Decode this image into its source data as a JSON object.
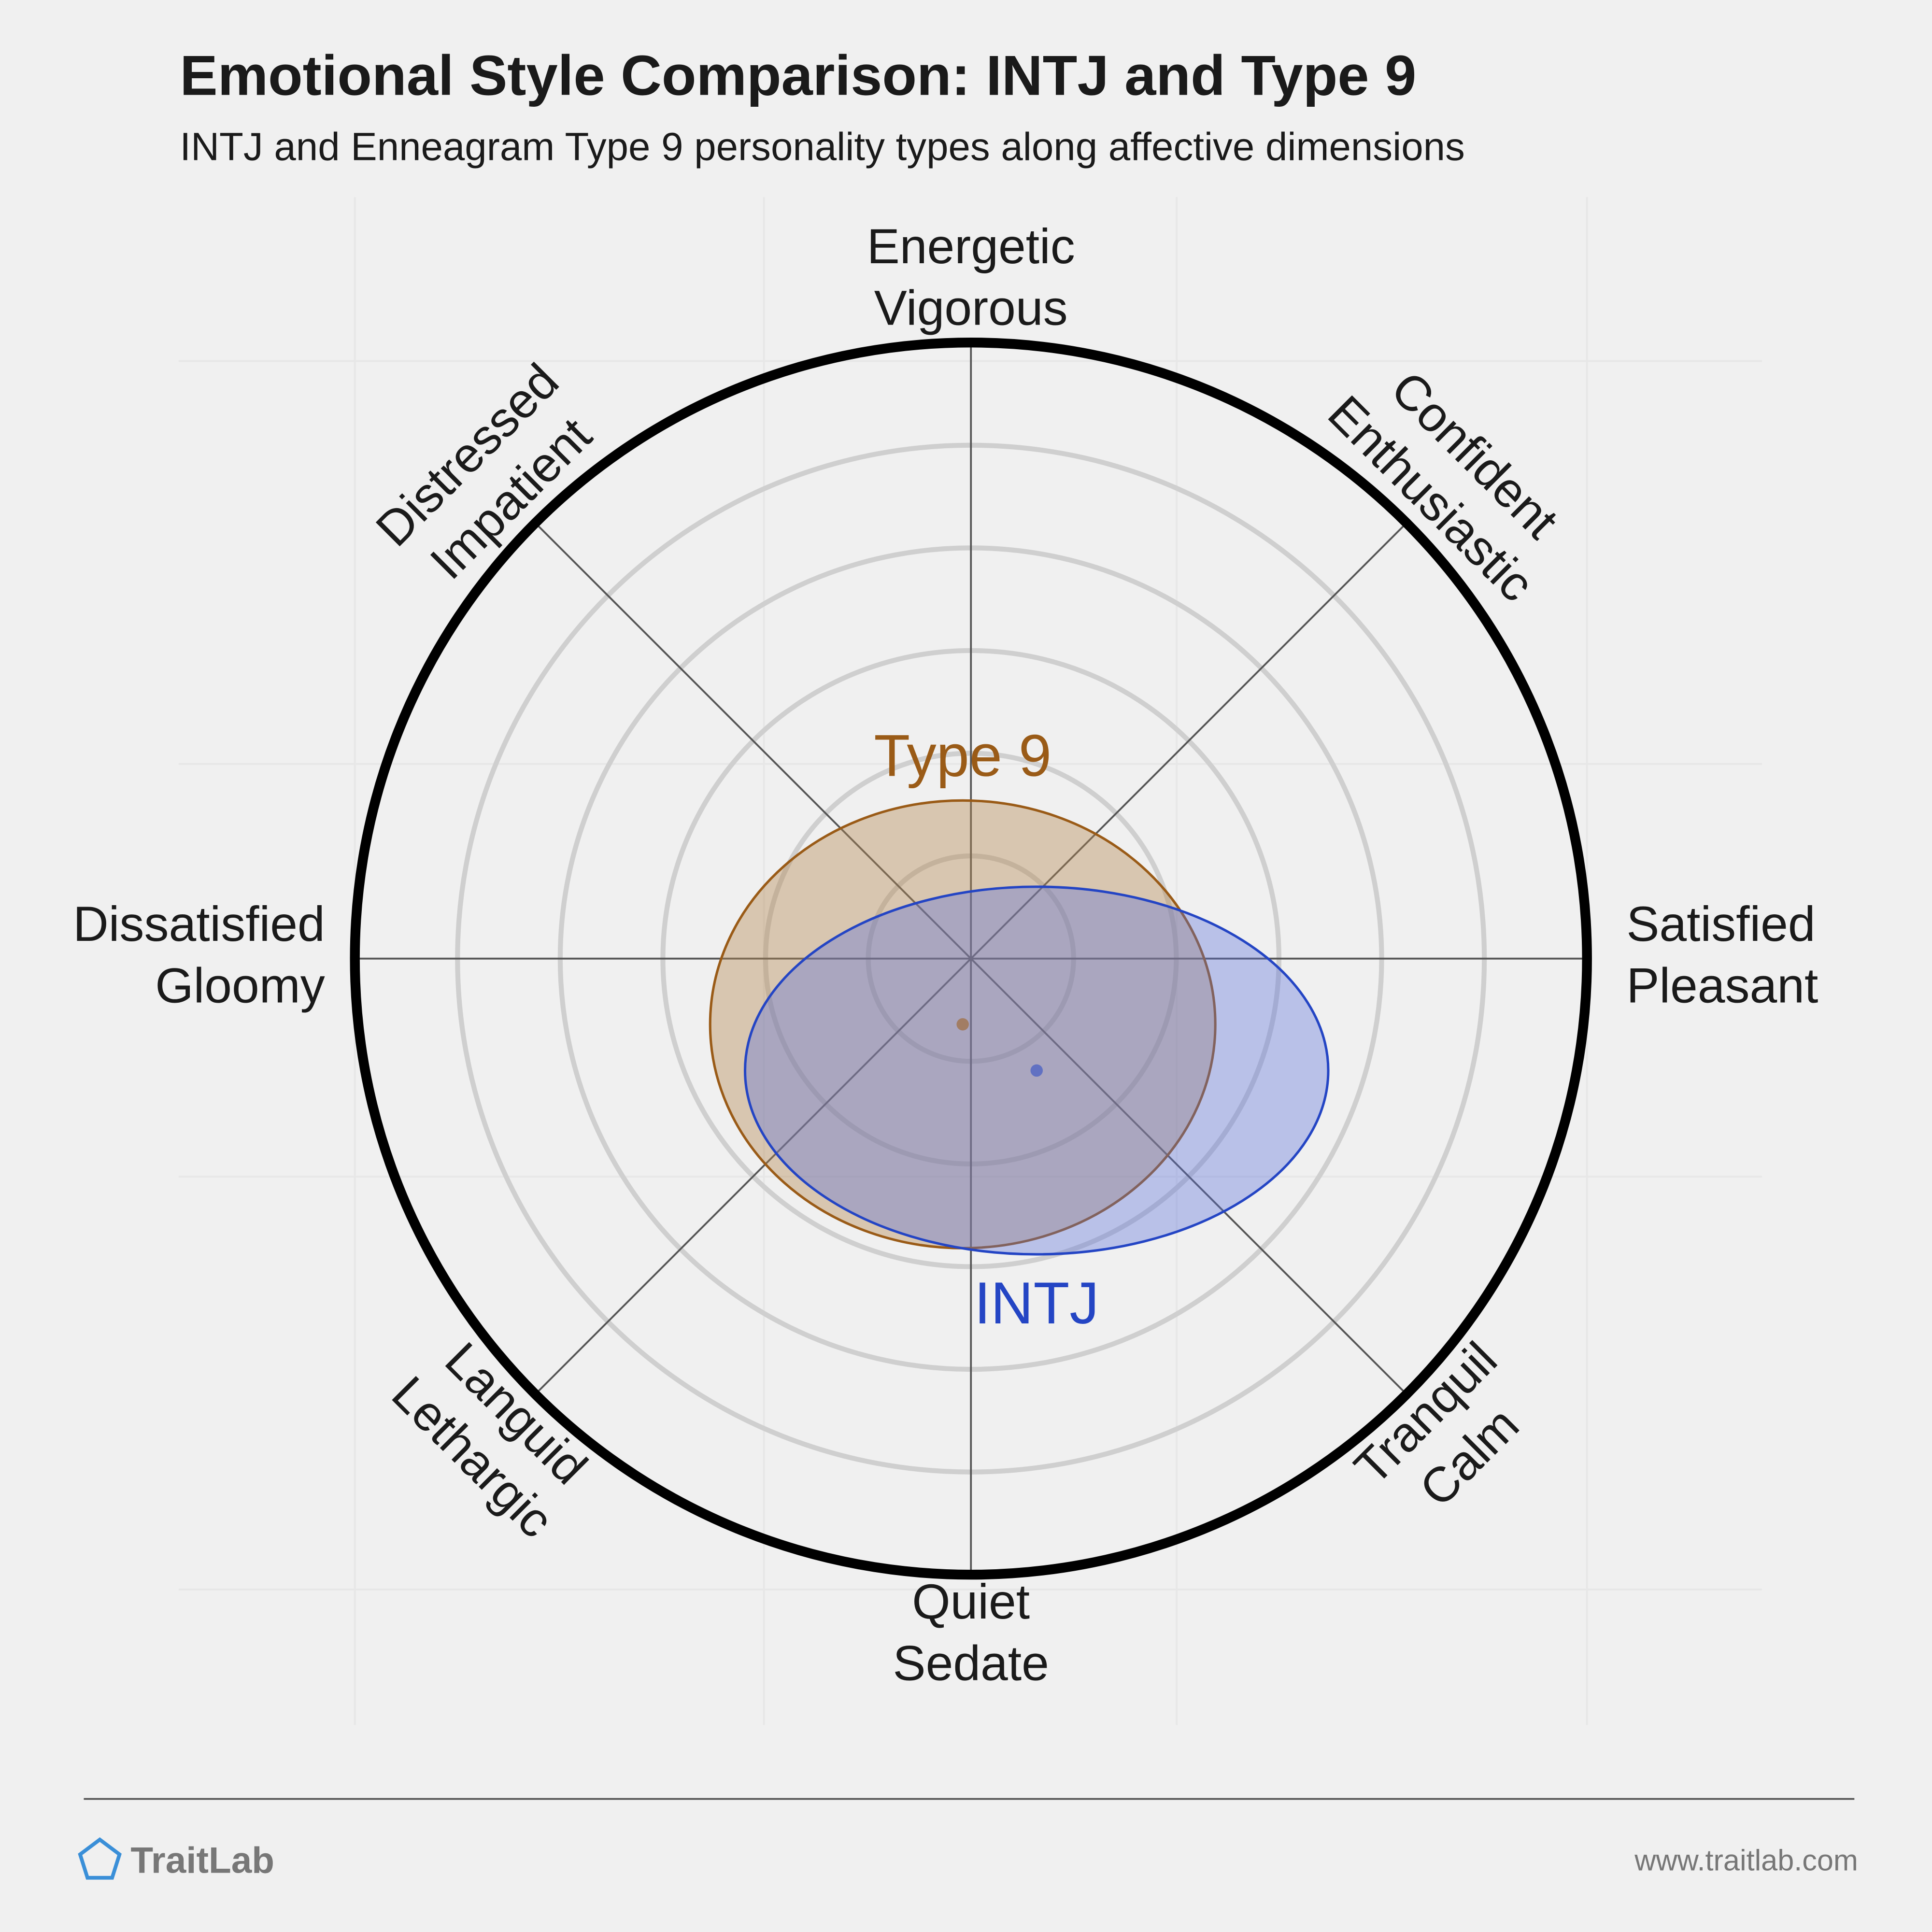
{
  "chart_data": {
    "type": "circumplex",
    "title": "Emotional Style Comparison: INTJ and Type 9",
    "subtitle": "INTJ and Enneagram Type 9 personality types along affective dimensions",
    "axes": [
      [
        "Satisfied",
        "Pleasant"
      ],
      [
        "Confident",
        "Enthusiastic"
      ],
      [
        "Energetic",
        "Vigorous"
      ],
      [
        "Distressed",
        "Impatient"
      ],
      [
        "Dissatisfied",
        "Gloomy"
      ],
      [
        "Languid",
        "Lethargic"
      ],
      [
        "Quiet",
        "Sedate"
      ],
      [
        "Tranquil",
        "Calm"
      ]
    ],
    "rlim": [
      0,
      6
    ],
    "rings": [
      1,
      2,
      3,
      4,
      5
    ],
    "series": [
      {
        "name": "Type 9",
        "color": "#9a5b17",
        "fill": "#b5865066",
        "x": -0.08,
        "y": -0.64,
        "rx": 2.46,
        "ry": 2.18,
        "label_position": "above"
      },
      {
        "name": "INTJ",
        "color": "#2445c4",
        "fill": "#5a6fdc5c",
        "x": 0.64,
        "y": -1.09,
        "rx": 2.84,
        "ry": 1.79,
        "label_position": "below"
      }
    ]
  },
  "footer": {
    "brand": "TraitLab",
    "url": "www.traitlab.com"
  }
}
